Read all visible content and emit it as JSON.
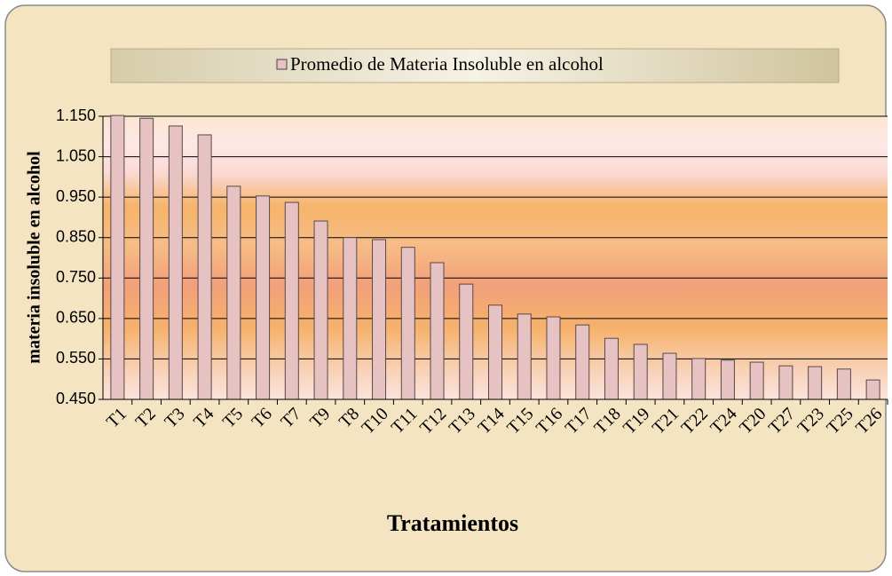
{
  "chart_data": {
    "type": "bar",
    "y_label": "materia insoluble en alcohol",
    "x_label": "Tratamientos",
    "categories": [
      "T1",
      "T2",
      "T3",
      "T4",
      "T5",
      "T6",
      "T7",
      "T9",
      "T8",
      "T10",
      "T11",
      "T12",
      "T13",
      "T14",
      "T15",
      "T16",
      "T17",
      "T18",
      "T19",
      "T21",
      "T22",
      "T24",
      "T20",
      "T27",
      "T23",
      "T25",
      "T26"
    ],
    "series": [
      {
        "name": "Promedio de Materia Insoluble en alcohol",
        "color": "#e6c2c2",
        "values": [
          1.152,
          1.145,
          1.126,
          1.104,
          0.977,
          0.953,
          0.937,
          0.891,
          0.85,
          0.845,
          0.826,
          0.788,
          0.735,
          0.683,
          0.661,
          0.654,
          0.634,
          0.601,
          0.586,
          0.564,
          0.551,
          0.547,
          0.542,
          0.533,
          0.531,
          0.525,
          0.498
        ]
      }
    ],
    "ylim": [
      0.45,
      1.15
    ],
    "yticks": [
      {
        "value": 0.45,
        "label": "0.450"
      },
      {
        "value": 0.55,
        "label": "0.550"
      },
      {
        "value": 0.65,
        "label": "0.650"
      },
      {
        "value": 0.75,
        "label": "0.750"
      },
      {
        "value": 0.85,
        "label": "0.850"
      },
      {
        "value": 0.95,
        "label": "0.950"
      },
      {
        "value": 1.05,
        "label": "1.050"
      },
      {
        "value": 1.15,
        "label": "1.150"
      }
    ],
    "grid": true
  }
}
